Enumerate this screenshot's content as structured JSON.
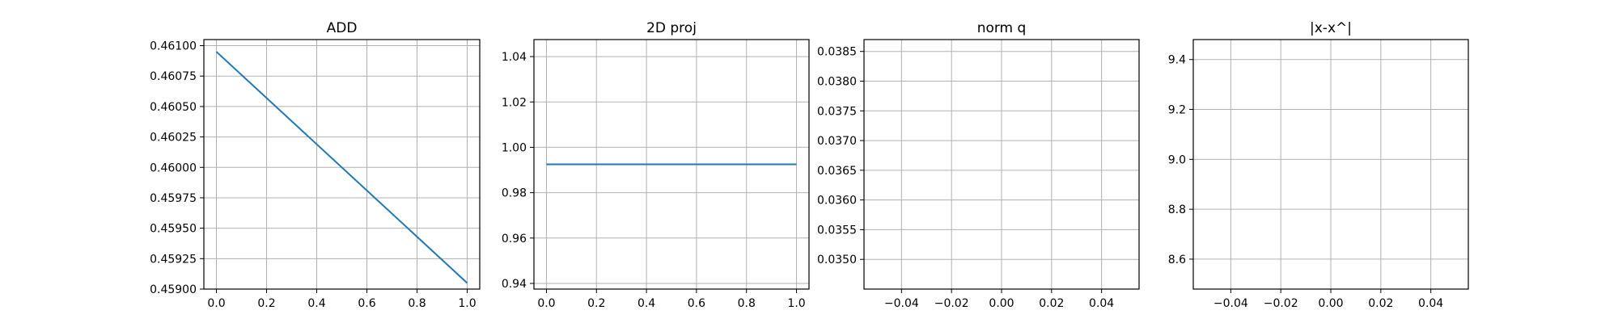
{
  "chart_data": [
    {
      "type": "line",
      "title": "ADD",
      "xlabel": "",
      "ylabel": "",
      "xlim": [
        -0.05,
        1.05
      ],
      "ylim": [
        0.459,
        0.46105
      ],
      "xticks": [
        0.0,
        0.2,
        0.4,
        0.6,
        0.8,
        1.0
      ],
      "xtick_labels": [
        "0.0",
        "0.2",
        "0.4",
        "0.6",
        "0.8",
        "1.0"
      ],
      "yticks": [
        0.459,
        0.45925,
        0.4595,
        0.45975,
        0.46,
        0.46025,
        0.4605,
        0.46075,
        0.461
      ],
      "ytick_labels": [
        "0.45900",
        "0.45925",
        "0.45950",
        "0.45975",
        "0.46000",
        "0.46025",
        "0.46050",
        "0.46075",
        "0.46100"
      ],
      "grid": true,
      "series": [
        {
          "x": [
            0.0,
            1.0
          ],
          "y": [
            0.46095,
            0.45905
          ],
          "color": "#1f77b4"
        }
      ]
    },
    {
      "type": "line",
      "title": "2D proj",
      "xlabel": "",
      "ylabel": "",
      "xlim": [
        -0.05,
        1.05
      ],
      "ylim": [
        0.9375,
        1.0475
      ],
      "xticks": [
        0.0,
        0.2,
        0.4,
        0.6,
        0.8,
        1.0
      ],
      "xtick_labels": [
        "0.0",
        "0.2",
        "0.4",
        "0.6",
        "0.8",
        "1.0"
      ],
      "yticks": [
        0.94,
        0.96,
        0.98,
        1.0,
        1.02,
        1.04
      ],
      "ytick_labels": [
        "0.94",
        "0.96",
        "0.98",
        "1.00",
        "1.02",
        "1.04"
      ],
      "grid": true,
      "series": [
        {
          "x": [
            0.0,
            1.0
          ],
          "y": [
            0.9925,
            0.9925
          ],
          "color": "#1f77b4"
        }
      ]
    },
    {
      "type": "line",
      "title": "norm q",
      "xlabel": "",
      "ylabel": "",
      "xlim": [
        -0.055,
        0.055
      ],
      "ylim": [
        0.0345,
        0.0387
      ],
      "xticks": [
        -0.04,
        -0.02,
        0.0,
        0.02,
        0.04
      ],
      "xtick_labels": [
        "−0.04",
        "−0.02",
        "0.00",
        "0.02",
        "0.04"
      ],
      "yticks": [
        0.035,
        0.0355,
        0.036,
        0.0365,
        0.037,
        0.0375,
        0.038,
        0.0385
      ],
      "ytick_labels": [
        "0.0350",
        "0.0355",
        "0.0360",
        "0.0365",
        "0.0370",
        "0.0375",
        "0.0380",
        "0.0385"
      ],
      "grid": true,
      "series": []
    },
    {
      "type": "line",
      "title": "|x-x^|",
      "xlabel": "",
      "ylabel": "",
      "xlim": [
        -0.055,
        0.055
      ],
      "ylim": [
        8.48,
        9.48
      ],
      "xticks": [
        -0.04,
        -0.02,
        0.0,
        0.02,
        0.04
      ],
      "xtick_labels": [
        "−0.04",
        "−0.02",
        "0.00",
        "0.02",
        "0.04"
      ],
      "yticks": [
        8.6,
        8.8,
        9.0,
        9.2,
        9.4
      ],
      "ytick_labels": [
        "8.6",
        "8.8",
        "9.0",
        "9.2",
        "9.4"
      ],
      "grid": true,
      "series": []
    }
  ]
}
